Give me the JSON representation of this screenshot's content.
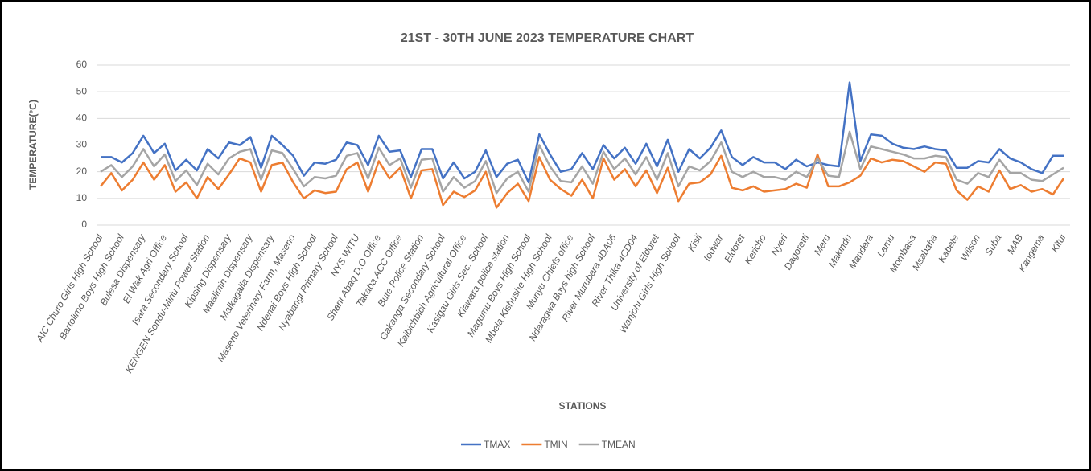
{
  "chart_data": {
    "type": "line",
    "title": "21ST - 30TH JUNE 2023 TEMPERATURE CHART",
    "x_label": "STATIONS",
    "y_label": "TEMPERATURE(°C)",
    "categories": [
      "AIC Churo Girls High School",
      null,
      "Bartolimo Boys High School",
      null,
      "Bulesa Dispensary",
      null,
      "El Wak Agri Office",
      null,
      "Isara Secondary School",
      null,
      "KENGEN Sondu-Miriu Power Station",
      null,
      "Kipsing Dispensary",
      null,
      "Maalimin Dispensary",
      null,
      "Malkagalla Dispensary",
      null,
      "Maseno Veterinary Farm, Maseno",
      null,
      "Ndenai Boys High School",
      null,
      "Nyabangi Primary School",
      null,
      "NYS WITU",
      null,
      "Shant Abaq D.O Office",
      null,
      "Takaba ACC Office",
      null,
      "Bute Police Station",
      null,
      "Gakanga Secondary School",
      null,
      "Kaibichbich Agricultural Office",
      null,
      "Kasigau Girls Sec. School",
      null,
      "Kiawara police station",
      null,
      "Magumu Boys High School",
      null,
      "Mbela Kishushe High School",
      null,
      "Munyu Chiefs office",
      null,
      "Ndaragwa Boys high School",
      null,
      "River Murubara 4DA06",
      null,
      "River Thika 4CD04",
      null,
      "University of Eldoret",
      null,
      "Wanjohi Girls High School",
      null,
      "Kisii",
      null,
      "Iodwar",
      null,
      "Eldoret",
      null,
      "Kericho",
      null,
      "Nyeri",
      null,
      "Dagoretti",
      null,
      "Meru",
      null,
      "Makindu",
      null,
      "Mandera",
      null,
      "Lamu",
      null,
      "Mombasa",
      null,
      "Msabaha",
      null,
      "Kabete",
      null,
      "Wilson",
      null,
      "Suba",
      null,
      "MAB",
      null,
      "Kangema",
      null,
      "Kitui"
    ],
    "series": [
      {
        "name": "TMAX",
        "color": "#4472c4",
        "values": [
          25.5,
          25.5,
          23.5,
          27,
          33.5,
          27,
          30.5,
          20.5,
          24.5,
          20.5,
          28.5,
          25,
          31,
          30,
          33,
          21.5,
          33.5,
          30,
          26,
          18.5,
          23.5,
          23,
          24.5,
          31,
          30,
          22.5,
          33.5,
          27.5,
          28,
          18,
          28.5,
          28.5,
          17.5,
          23.5,
          17.5,
          20,
          28,
          18,
          23,
          24.5,
          16,
          34,
          26.5,
          20,
          21,
          27,
          21,
          30,
          25,
          29,
          23,
          30.5,
          22,
          32,
          20,
          28.5,
          25,
          29,
          35.5,
          25.5,
          22.5,
          25.5,
          23.5,
          23.5,
          21,
          24.5,
          22,
          23.5,
          22.5,
          22,
          53.5,
          24,
          34,
          33.5,
          30.5,
          29,
          28.5,
          29.5,
          28.5,
          28,
          21.5,
          21.5,
          24,
          23.5,
          28.5,
          25,
          23.5,
          21,
          19.5,
          26,
          26
        ]
      },
      {
        "name": "TMIN",
        "color": "#ed7d31",
        "values": [
          14.5,
          19.5,
          13,
          17,
          23.5,
          17,
          22.5,
          12.5,
          16,
          10,
          18,
          13.5,
          19,
          25,
          23.5,
          12.5,
          22.5,
          23.5,
          16,
          10,
          13,
          12,
          12.5,
          21,
          23.5,
          12.5,
          24,
          17.5,
          21.5,
          10,
          20.5,
          21,
          7.5,
          12.5,
          10.5,
          13,
          20,
          6.5,
          12,
          15.5,
          9,
          25.5,
          17,
          13.5,
          11,
          17,
          10,
          25,
          17,
          21,
          14.5,
          20.5,
          12,
          21.5,
          9,
          15.5,
          16,
          19,
          26,
          14,
          13,
          14.5,
          12.5,
          13,
          13.5,
          15.5,
          14,
          26.5,
          14.5,
          14.5,
          16,
          18.5,
          25,
          23.5,
          24.5,
          24,
          22,
          20,
          23.5,
          23,
          13,
          9.5,
          14.5,
          12.5,
          20.5,
          13.5,
          15,
          12.5,
          13.5,
          11.5,
          17.5
        ]
      },
      {
        "name": "TMEAN",
        "color": "#a5a5a5",
        "values": [
          20,
          22.5,
          18,
          22,
          28.5,
          22,
          26.5,
          16.5,
          20.5,
          15,
          23,
          19,
          25,
          27.5,
          28.5,
          17,
          28,
          27,
          21,
          14.5,
          18,
          17.5,
          18.5,
          26,
          27,
          17.5,
          29,
          22.5,
          25,
          14,
          24.5,
          25,
          12.5,
          18,
          14,
          16.5,
          24,
          12,
          17.5,
          20,
          12.5,
          30,
          22,
          16.5,
          16,
          22,
          15.5,
          27.5,
          21,
          25,
          19,
          25.5,
          17,
          27,
          14.5,
          22,
          20.5,
          24,
          31,
          20,
          18,
          20,
          18,
          18,
          17,
          20,
          18,
          25,
          18.5,
          18,
          35,
          21,
          29.5,
          28.5,
          27.5,
          26.5,
          25,
          25,
          26,
          25.5,
          17,
          15.5,
          19.5,
          18,
          24.5,
          19.5,
          19.5,
          17,
          16.5,
          19,
          21.5
        ]
      }
    ],
    "ylim": [
      0,
      60
    ],
    "yticks": [
      0,
      10,
      20,
      30,
      40,
      50,
      60
    ],
    "grid": true,
    "legend": "bottom"
  }
}
